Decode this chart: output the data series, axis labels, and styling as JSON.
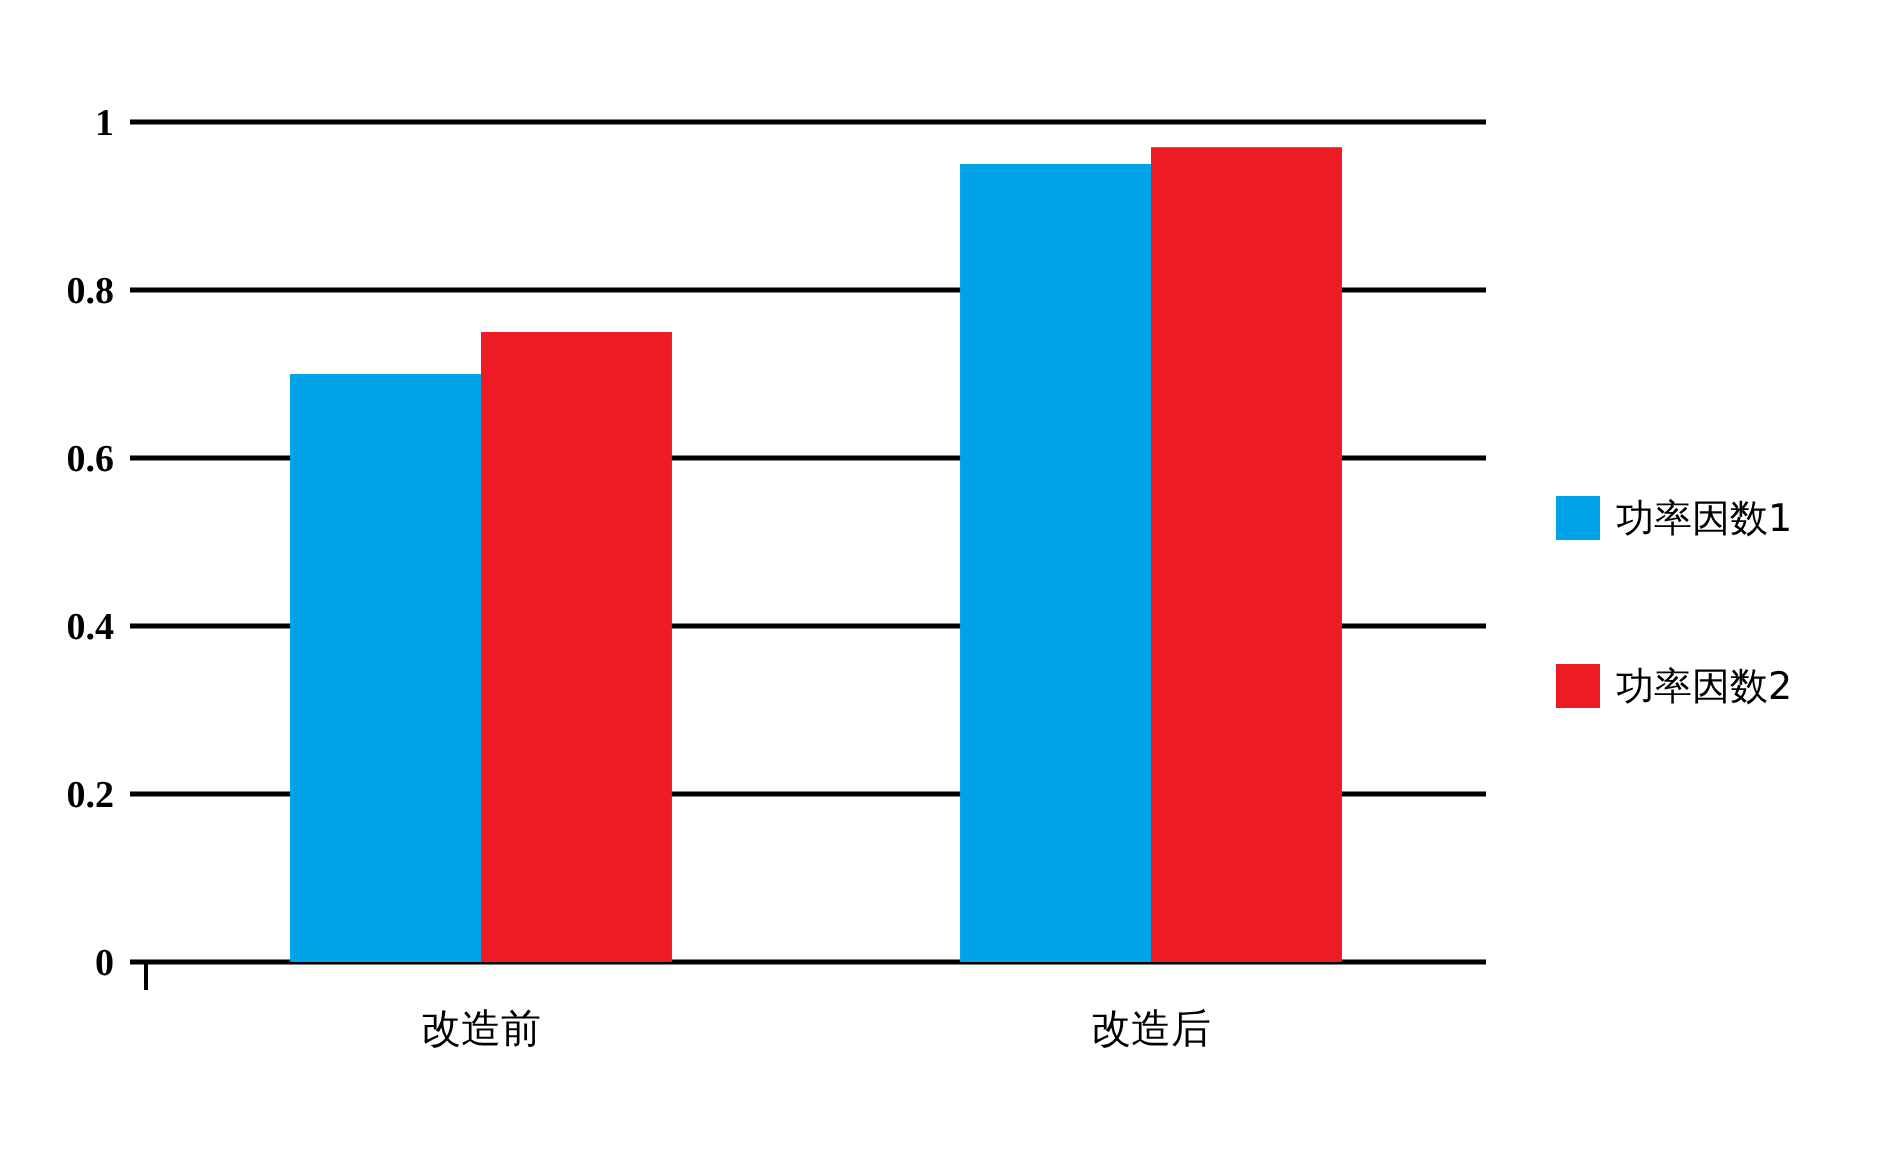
{
  "chart_data": {
    "type": "bar",
    "categories": [
      "改造前",
      "改造后"
    ],
    "series": [
      {
        "name": "功率因数1",
        "color": "#00a2e8",
        "values": [
          0.7,
          0.95
        ]
      },
      {
        "name": "功率因数2",
        "color": "#ed1c24",
        "values": [
          0.75,
          0.97
        ]
      }
    ],
    "ylim": [
      0,
      1
    ],
    "yticks": [
      0,
      0.2,
      0.4,
      0.6,
      0.8,
      1
    ],
    "grid": "y",
    "legend": "right"
  }
}
